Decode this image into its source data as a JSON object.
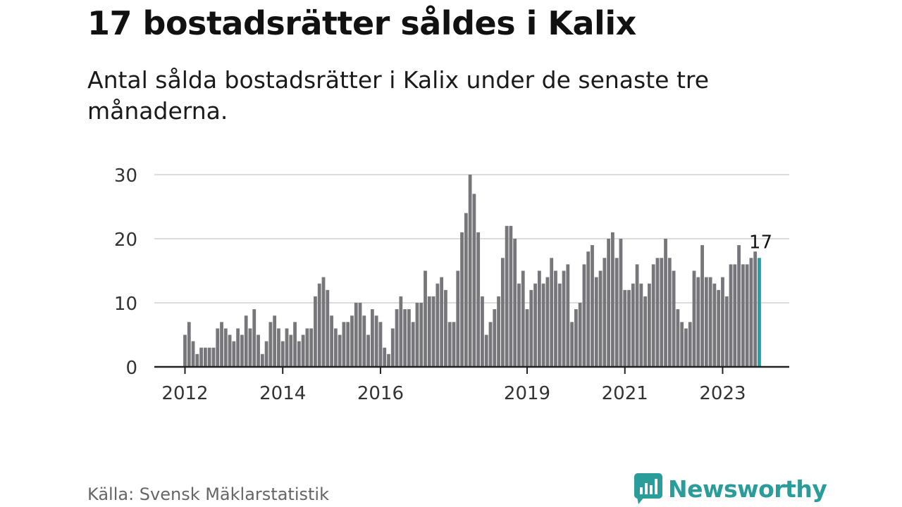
{
  "header": {
    "title": "17 bostadsrätter såldes i Kalix",
    "subtitle": "Antal sålda bostadsrätter i Kalix under de senaste tre månaderna."
  },
  "footer": {
    "source": "Källa: Svensk Mäklarstatistik",
    "brand": "Newsworthy",
    "brand_icon": "bar-chart-speech-bubble-icon"
  },
  "colors": {
    "bars": "#77767a",
    "highlight": "#1fa3a0",
    "grid": "#dcdcdc",
    "axis": "#222222",
    "brand": "#2a9d9a"
  },
  "chart_data": {
    "type": "bar",
    "title": "17 bostadsrätter såldes i Kalix",
    "xlabel": "",
    "ylabel": "",
    "ylim": [
      0,
      30
    ],
    "yticks": [
      0,
      10,
      20,
      30
    ],
    "grid": true,
    "x_start": "2012-01",
    "x_ticks": [
      {
        "label": "2012",
        "year": 2012
      },
      {
        "label": "2014",
        "year": 2014
      },
      {
        "label": "2016",
        "year": 2016
      },
      {
        "label": "2019",
        "year": 2019
      },
      {
        "label": "2021",
        "year": 2021
      },
      {
        "label": "2023",
        "year": 2023
      }
    ],
    "values": [
      5,
      7,
      4,
      2,
      3,
      3,
      3,
      3,
      6,
      7,
      6,
      5,
      4,
      6,
      5,
      8,
      6,
      9,
      5,
      2,
      4,
      7,
      8,
      6,
      4,
      6,
      5,
      7,
      4,
      5,
      6,
      6,
      11,
      13,
      14,
      12,
      8,
      6,
      5,
      7,
      7,
      8,
      10,
      10,
      8,
      5,
      9,
      8,
      7,
      3,
      2,
      6,
      9,
      11,
      9,
      9,
      7,
      10,
      10,
      15,
      11,
      11,
      13,
      14,
      12,
      7,
      7,
      15,
      21,
      24,
      30,
      27,
      21,
      11,
      5,
      7,
      9,
      11,
      17,
      22,
      22,
      20,
      13,
      15,
      9,
      12,
      13,
      15,
      13,
      14,
      17,
      15,
      13,
      15,
      16,
      7,
      9,
      10,
      16,
      18,
      19,
      14,
      15,
      17,
      20,
      21,
      17,
      20,
      12,
      12,
      13,
      16,
      13,
      11,
      13,
      16,
      17,
      17,
      20,
      17,
      15,
      9,
      7,
      6,
      7,
      15,
      14,
      19,
      14,
      14,
      13,
      12,
      14,
      11,
      16,
      16,
      19,
      16,
      16,
      17,
      18,
      17
    ],
    "highlight_last": true,
    "annotation": {
      "label": "17",
      "value": 17
    }
  }
}
